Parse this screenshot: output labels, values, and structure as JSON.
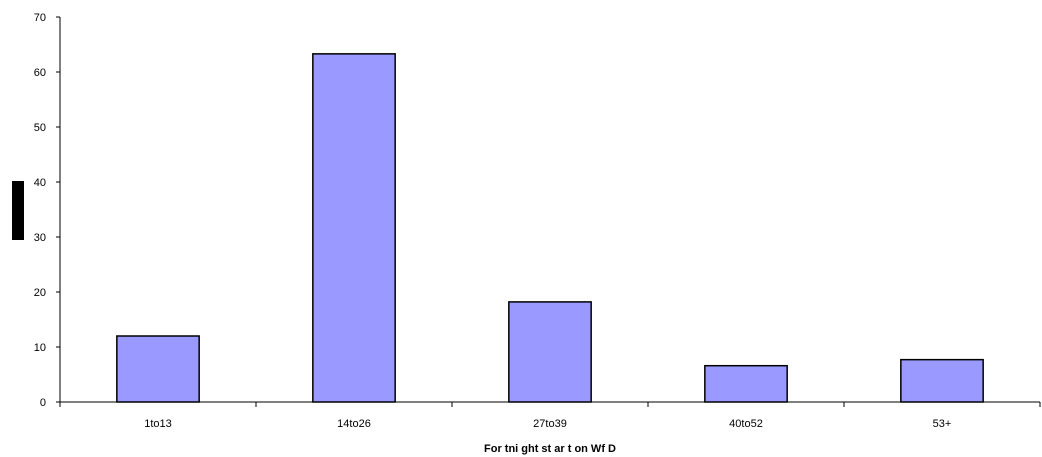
{
  "chart_data": {
    "type": "bar",
    "categories": [
      "1to13",
      "14to26",
      "27to39",
      "40to52",
      "53+"
    ],
    "values": [
      12,
      63.3,
      18.2,
      6.6,
      7.7
    ],
    "title": "",
    "xlabel": "For tni ght  st ar t  on Wf D",
    "ylabel": "",
    "ylim": [
      0,
      70
    ],
    "yticks": [
      "0",
      "10",
      "20",
      "30",
      "40",
      "50",
      "60",
      "70"
    ],
    "bar_color": "#9999ff",
    "bar_edge_color": "#000000",
    "grid": false,
    "legend": "none"
  }
}
